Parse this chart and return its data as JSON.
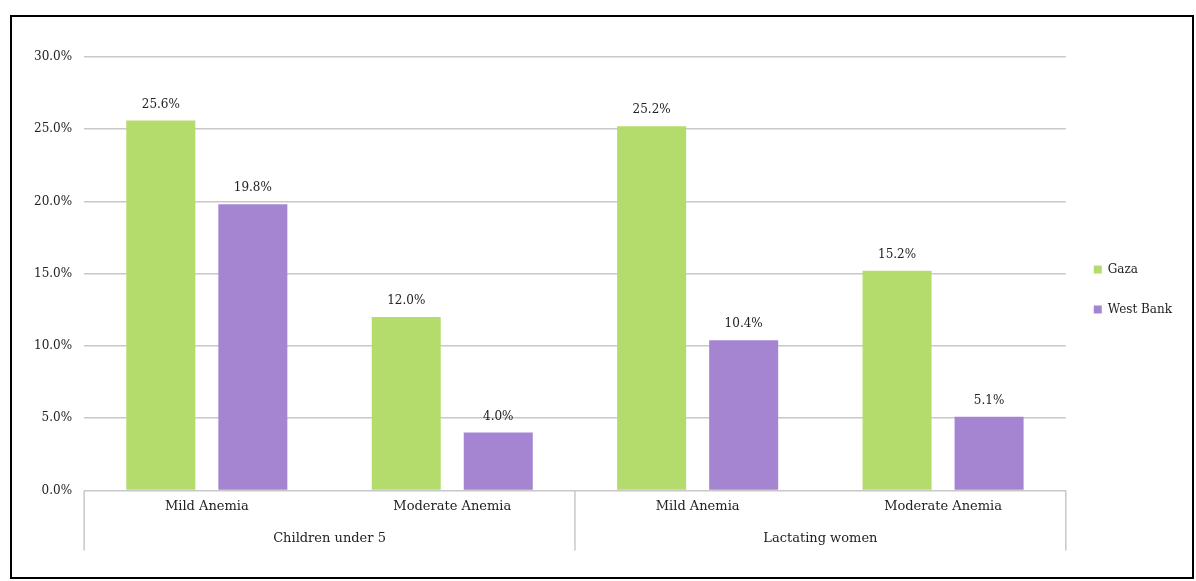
{
  "chart_data": {
    "type": "bar",
    "categories": [
      "Mild Anemia",
      "Moderate Anemia",
      "Mild Anemia",
      "Moderate Anemia"
    ],
    "series": [
      {
        "name": "Gaza",
        "color": "#b3dc6c",
        "values": [
          25.6,
          12.0,
          25.2,
          15.2
        ],
        "value_labels": [
          "25.6%",
          "12.0%",
          "25.2%",
          "15.2%"
        ]
      },
      {
        "name": "West Bank",
        "color": "#a584d2",
        "values": [
          19.8,
          4.0,
          10.4,
          5.1
        ],
        "value_labels": [
          "19.8%",
          "4.0%",
          "10.4%",
          "5.1%"
        ]
      }
    ],
    "ylim": [
      0,
      30
    ],
    "yticks": [
      {
        "value": 0,
        "label": "0.0%"
      },
      {
        "value": 5,
        "label": "5.0%"
      },
      {
        "value": 10,
        "label": "10.0%"
      },
      {
        "value": 15,
        "label": "15.0%"
      },
      {
        "value": 20,
        "label": "20.0%"
      },
      {
        "value": 25,
        "label": "25.0%"
      },
      {
        "value": 30,
        "label": "30.0%"
      }
    ],
    "annotations": [
      "Children under 5",
      "Lactating women"
    ],
    "grid": "y",
    "legend": "right"
  }
}
